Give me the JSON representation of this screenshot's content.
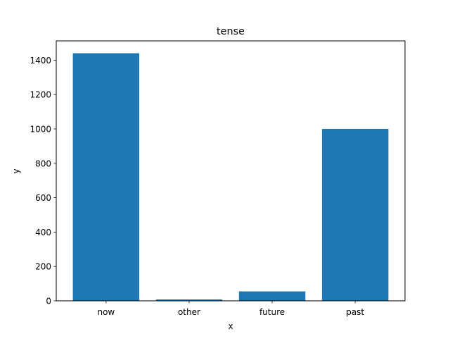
{
  "chart_data": {
    "type": "bar",
    "title": "tense",
    "xlabel": "x",
    "ylabel": "y",
    "categories": [
      "now",
      "other",
      "future",
      "past"
    ],
    "values": [
      1440,
      8,
      55,
      1000
    ],
    "ylim": [
      0,
      1512
    ],
    "yticks": [
      0,
      200,
      400,
      600,
      800,
      1000,
      1200,
      1400
    ],
    "grid": false,
    "bar_color": "#1f77b4"
  }
}
